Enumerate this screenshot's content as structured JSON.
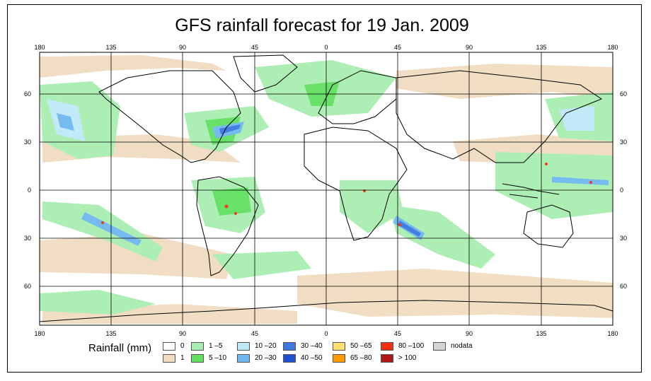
{
  "title": "GFS rainfall forecast for 19 Jan. 2009",
  "axes": {
    "lon_labels": [
      "180",
      "135",
      "90",
      "45",
      "0",
      "45",
      "90",
      "135",
      "180"
    ],
    "lat_labels": [
      "60",
      "30",
      "0",
      "30",
      "60"
    ]
  },
  "legend": {
    "title": "Rainfall (mm)",
    "items": [
      {
        "label": "0",
        "color": "#ffffff"
      },
      {
        "label": "1",
        "color": "#f0dcc0"
      },
      {
        "label": "1 –5",
        "color": "#a8eeb0"
      },
      {
        "label": "5 –10",
        "color": "#60e060"
      },
      {
        "label": "10 –20",
        "color": "#bfe8f8"
      },
      {
        "label": "20 –30",
        "color": "#6fb8f0"
      },
      {
        "label": "30 –40",
        "color": "#3c78e0"
      },
      {
        "label": "40 –50",
        "color": "#2050d0"
      },
      {
        "label": "50 –65",
        "color": "#ffe070"
      },
      {
        "label": "65 –80",
        "color": "#ff9a00"
      },
      {
        "label": "80 –100",
        "color": "#f03010"
      },
      {
        "label": "> 100",
        "color": "#b01818"
      },
      {
        "label": "nodata",
        "color": "#d3d3d3"
      }
    ]
  }
}
